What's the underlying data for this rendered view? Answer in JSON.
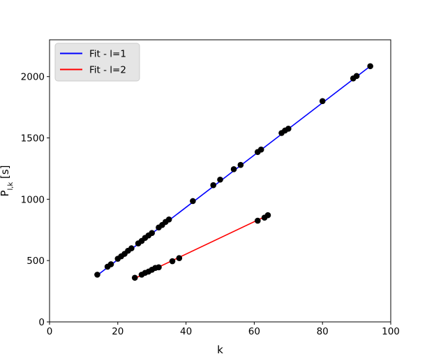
{
  "chart_data": {
    "type": "scatter",
    "xlabel": "k",
    "ylabel": "P_{l,k} [s]",
    "xlim": [
      0,
      100
    ],
    "ylim": [
      0,
      2300
    ],
    "x_ticks": [
      0,
      20,
      40,
      60,
      80,
      100
    ],
    "y_ticks": [
      0,
      500,
      1000,
      1500,
      2000
    ],
    "grid": false,
    "legend_position": "top-left",
    "legend": [
      {
        "label": "Fit - l=1",
        "color": "#0000ff"
      },
      {
        "label": "Fit - l=2",
        "color": "#ff0000"
      }
    ],
    "series": [
      {
        "name": "Fit - l=1",
        "kind": "line",
        "color": "#0000ff",
        "x": [
          14,
          94
        ],
        "y": [
          380,
          2085
        ]
      },
      {
        "name": "Fit - l=2",
        "kind": "line",
        "color": "#ff0000",
        "x": [
          25,
          64
        ],
        "y": [
          355,
          870
        ]
      },
      {
        "kind": "points",
        "color": "#000000",
        "points": [
          [
            14,
            385
          ],
          [
            17,
            450
          ],
          [
            18,
            470
          ],
          [
            20,
            515
          ],
          [
            21,
            535
          ],
          [
            22,
            555
          ],
          [
            23,
            580
          ],
          [
            24,
            600
          ],
          [
            26,
            640
          ],
          [
            27,
            660
          ],
          [
            28,
            685
          ],
          [
            29,
            705
          ],
          [
            30,
            725
          ],
          [
            32,
            770
          ],
          [
            33,
            790
          ],
          [
            34,
            815
          ],
          [
            35,
            835
          ],
          [
            42,
            985
          ],
          [
            48,
            1115
          ],
          [
            50,
            1160
          ],
          [
            54,
            1245
          ],
          [
            56,
            1280
          ],
          [
            61,
            1385
          ],
          [
            62,
            1405
          ],
          [
            68,
            1540
          ],
          [
            69,
            1560
          ],
          [
            70,
            1575
          ],
          [
            80,
            1800
          ],
          [
            89,
            1985
          ],
          [
            90,
            2005
          ],
          [
            94,
            2085
          ],
          [
            25,
            360
          ],
          [
            27,
            385
          ],
          [
            28,
            400
          ],
          [
            29,
            410
          ],
          [
            30,
            425
          ],
          [
            31,
            440
          ],
          [
            32,
            445
          ],
          [
            36,
            495
          ],
          [
            38,
            520
          ],
          [
            61,
            825
          ],
          [
            63,
            850
          ],
          [
            64,
            870
          ]
        ]
      }
    ]
  }
}
